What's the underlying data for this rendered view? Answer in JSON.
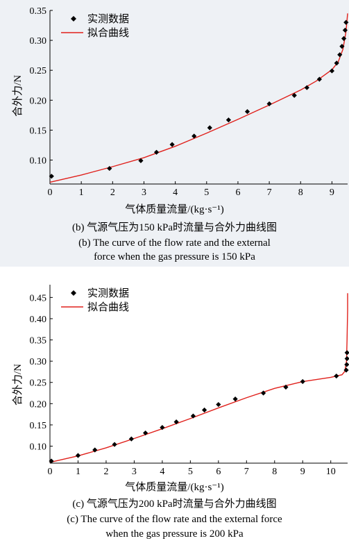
{
  "chart_data": [
    {
      "type": "scatter",
      "xlabel": "气体质量流量/(kg·s⁻¹)",
      "ylabel": "合外力/N",
      "caption_cn": "(b) 气源气压为150 kPa时流量与合外力曲线图",
      "caption_en_1": "(b) The curve of the flow rate and the external",
      "caption_en_2": "force when the gas pressure is 150 kPa",
      "xlim": [
        0,
        9.5
      ],
      "ylim": [
        0.06,
        0.35
      ],
      "x_ticks": [
        0,
        1,
        2,
        3,
        4,
        5,
        6,
        7,
        8,
        9
      ],
      "y_ticks": [
        0.1,
        0.15,
        0.2,
        0.25,
        0.3,
        0.35
      ],
      "y_tick_labels": [
        "0.10",
        "0.15",
        "0.20",
        "0.25",
        "0.30",
        "0.35"
      ],
      "legend": {
        "position": "top-left",
        "measured": "实测数据",
        "fitted": "拟合曲线"
      },
      "series": [
        {
          "name": "实测数据",
          "kind": "points",
          "points": [
            [
              0.05,
              0.073
            ],
            [
              1.9,
              0.086
            ],
            [
              2.9,
              0.099
            ],
            [
              3.4,
              0.113
            ],
            [
              3.9,
              0.126
            ],
            [
              4.6,
              0.14
            ],
            [
              5.1,
              0.154
            ],
            [
              5.7,
              0.167
            ],
            [
              6.3,
              0.181
            ],
            [
              7.0,
              0.194
            ],
            [
              7.8,
              0.208
            ],
            [
              8.2,
              0.221
            ],
            [
              8.6,
              0.235
            ],
            [
              9.0,
              0.249
            ],
            [
              9.15,
              0.262
            ],
            [
              9.25,
              0.276
            ],
            [
              9.32,
              0.29
            ],
            [
              9.38,
              0.303
            ],
            [
              9.42,
              0.317
            ],
            [
              9.45,
              0.33
            ]
          ]
        },
        {
          "name": "拟合曲线",
          "kind": "line",
          "points": [
            [
              0,
              0.063
            ],
            [
              1,
              0.075
            ],
            [
              2,
              0.089
            ],
            [
              3,
              0.104
            ],
            [
              4,
              0.123
            ],
            [
              5,
              0.145
            ],
            [
              6,
              0.168
            ],
            [
              7,
              0.192
            ],
            [
              8,
              0.217
            ],
            [
              8.5,
              0.232
            ],
            [
              9.0,
              0.251
            ],
            [
              9.2,
              0.264
            ],
            [
              9.35,
              0.285
            ],
            [
              9.45,
              0.315
            ],
            [
              9.5,
              0.345
            ]
          ]
        }
      ],
      "colors": {
        "fit": "#e0201b",
        "marker": "#000000",
        "background": "#eef1f5"
      }
    },
    {
      "type": "scatter",
      "xlabel": "气体质量流量/(kg·s⁻¹)",
      "ylabel": "合外力/N",
      "caption_cn": "(c) 气源气压为200 kPa时流量与合外力曲线图",
      "caption_en_1": "(c) The curve of the flow rate and the external force",
      "caption_en_2": "when the gas pressure is 200 kPa",
      "xlim": [
        0,
        10.6
      ],
      "ylim": [
        0.06,
        0.48
      ],
      "x_ticks": [
        0,
        1,
        2,
        3,
        4,
        5,
        6,
        7,
        8,
        9,
        10
      ],
      "y_ticks": [
        0.1,
        0.15,
        0.2,
        0.25,
        0.3,
        0.35,
        0.4,
        0.45
      ],
      "y_tick_labels": [
        "0.10",
        "0.15",
        "0.20",
        "0.25",
        "0.30",
        "0.35",
        "0.40",
        "0.45"
      ],
      "legend": {
        "position": "top-left",
        "measured": "实测数据",
        "fitted": "拟合曲线"
      },
      "series": [
        {
          "name": "实测数据",
          "kind": "points",
          "points": [
            [
              0.05,
              0.065
            ],
            [
              1.0,
              0.078
            ],
            [
              1.6,
              0.091
            ],
            [
              2.3,
              0.104
            ],
            [
              2.9,
              0.117
            ],
            [
              3.4,
              0.131
            ],
            [
              4.0,
              0.144
            ],
            [
              4.5,
              0.157
            ],
            [
              5.1,
              0.171
            ],
            [
              5.5,
              0.185
            ],
            [
              6.0,
              0.198
            ],
            [
              6.6,
              0.211
            ],
            [
              7.6,
              0.225
            ],
            [
              8.4,
              0.239
            ],
            [
              9.0,
              0.252
            ],
            [
              10.2,
              0.265
            ],
            [
              10.55,
              0.279
            ],
            [
              10.57,
              0.292
            ],
            [
              10.58,
              0.306
            ],
            [
              10.58,
              0.32
            ]
          ]
        },
        {
          "name": "拟合曲线",
          "kind": "line",
          "points": [
            [
              0,
              0.062
            ],
            [
              1,
              0.077
            ],
            [
              2,
              0.096
            ],
            [
              3,
              0.118
            ],
            [
              4,
              0.141
            ],
            [
              5,
              0.165
            ],
            [
              6,
              0.19
            ],
            [
              7,
              0.214
            ],
            [
              8,
              0.236
            ],
            [
              9,
              0.252
            ],
            [
              10,
              0.262
            ],
            [
              10.4,
              0.268
            ],
            [
              10.5,
              0.276
            ],
            [
              10.56,
              0.3
            ],
            [
              10.58,
              0.35
            ],
            [
              10.6,
              0.42
            ],
            [
              10.6,
              0.46
            ]
          ]
        }
      ],
      "colors": {
        "fit": "#e0201b",
        "marker": "#000000",
        "background": "#ffffff"
      }
    }
  ]
}
